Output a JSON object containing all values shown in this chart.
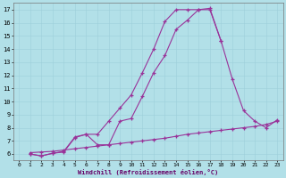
{
  "background_color": "#b2e0e8",
  "line_color": "#993399",
  "xlim": [
    -0.5,
    23.5
  ],
  "ylim": [
    5.5,
    17.5
  ],
  "xticks": [
    0,
    1,
    2,
    3,
    4,
    5,
    6,
    7,
    8,
    9,
    10,
    11,
    12,
    13,
    14,
    15,
    16,
    17,
    18,
    19,
    20,
    21,
    22,
    23
  ],
  "yticks": [
    6,
    7,
    8,
    9,
    10,
    11,
    12,
    13,
    14,
    15,
    16,
    17
  ],
  "curve1_x": [
    1,
    2,
    3,
    4,
    5,
    6,
    7,
    8,
    9,
    10,
    11,
    12,
    13,
    14,
    15,
    16,
    17,
    18,
    19,
    20,
    21,
    22,
    23
  ],
  "curve1_y": [
    6.0,
    5.85,
    6.05,
    6.2,
    7.3,
    7.5,
    6.7,
    6.7,
    8.5,
    8.7,
    10.4,
    12.2,
    13.5,
    15.5,
    16.2,
    17.0,
    17.1,
    14.6,
    11.7,
    9.3,
    8.5,
    8.0,
    8.6
  ],
  "curve2_x": [
    1,
    2,
    3,
    4,
    5,
    6,
    7,
    8,
    9,
    10,
    11,
    12,
    13,
    14,
    15,
    16,
    17,
    18
  ],
  "curve2_y": [
    6.0,
    5.85,
    6.05,
    6.15,
    7.25,
    7.5,
    7.5,
    8.5,
    9.5,
    10.5,
    12.2,
    14.0,
    16.1,
    17.0,
    17.0,
    17.0,
    17.0,
    14.6
  ],
  "curve3_x": [
    1,
    2,
    3,
    4,
    5,
    6,
    7,
    8,
    9,
    10,
    11,
    12,
    13,
    14,
    15,
    16,
    17,
    18,
    19,
    20,
    21,
    22,
    23
  ],
  "curve3_y": [
    6.1,
    6.15,
    6.2,
    6.3,
    6.4,
    6.5,
    6.6,
    6.7,
    6.8,
    6.9,
    7.0,
    7.1,
    7.2,
    7.35,
    7.5,
    7.6,
    7.7,
    7.8,
    7.9,
    8.0,
    8.1,
    8.25,
    8.5
  ],
  "xlabel": "Windchill (Refroidissement éolien,°C)"
}
